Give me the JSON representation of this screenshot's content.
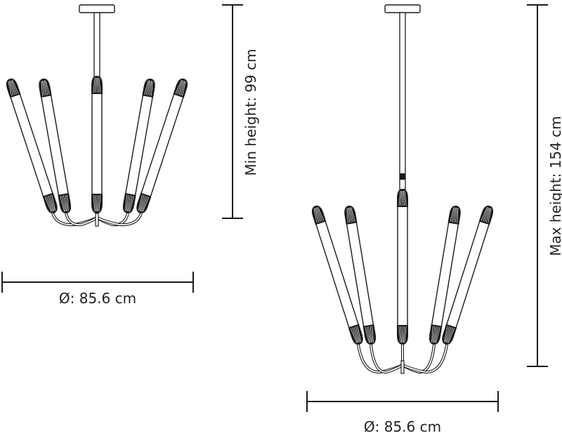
{
  "left_view": {
    "height_label": "Min height: 99 cm",
    "diameter_label": "Ø: 85.6 cm"
  },
  "right_view": {
    "height_label": "Max height: 154 cm",
    "diameter_label": "Ø: 85.6 cm"
  },
  "colors": {
    "line": "#1a1a1a",
    "background": "#ffffff"
  }
}
